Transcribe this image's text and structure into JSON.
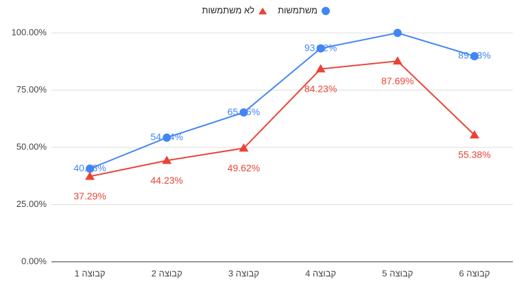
{
  "chart_data": {
    "type": "line",
    "categories": [
      "קבוצה 1",
      "קבוצה 2",
      "קבוצה 3",
      "קבוצה 4",
      "קבוצה 5",
      "קבוצה 6"
    ],
    "series": [
      {
        "name": "משתמשות",
        "color": "#4285f4",
        "marker": "circle",
        "values": [
          40.68,
          54.24,
          65.25,
          93.22,
          100,
          89.83
        ],
        "value_labels": [
          "40.68%",
          "54.24%",
          "65.25%",
          "93.22%",
          null,
          "89.83%"
        ]
      },
      {
        "name": "לא משתמשות",
        "color": "#ea4335",
        "marker": "triangle",
        "values": [
          37.29,
          44.23,
          49.62,
          84.23,
          87.69,
          55.38
        ],
        "value_labels": [
          "37.29%",
          "44.23%",
          "49.62%",
          "84.23%",
          "87.69%",
          "55.38%"
        ]
      }
    ],
    "ylim": [
      0,
      100
    ],
    "yticks": [
      {
        "value": 0,
        "label": "0.00%"
      },
      {
        "value": 25,
        "label": "25.00%"
      },
      {
        "value": 50,
        "label": "50.00%"
      },
      {
        "value": 75,
        "label": "75.00%"
      },
      {
        "value": 100,
        "label": "100.00%"
      }
    ],
    "grid": true,
    "legend": "top"
  }
}
